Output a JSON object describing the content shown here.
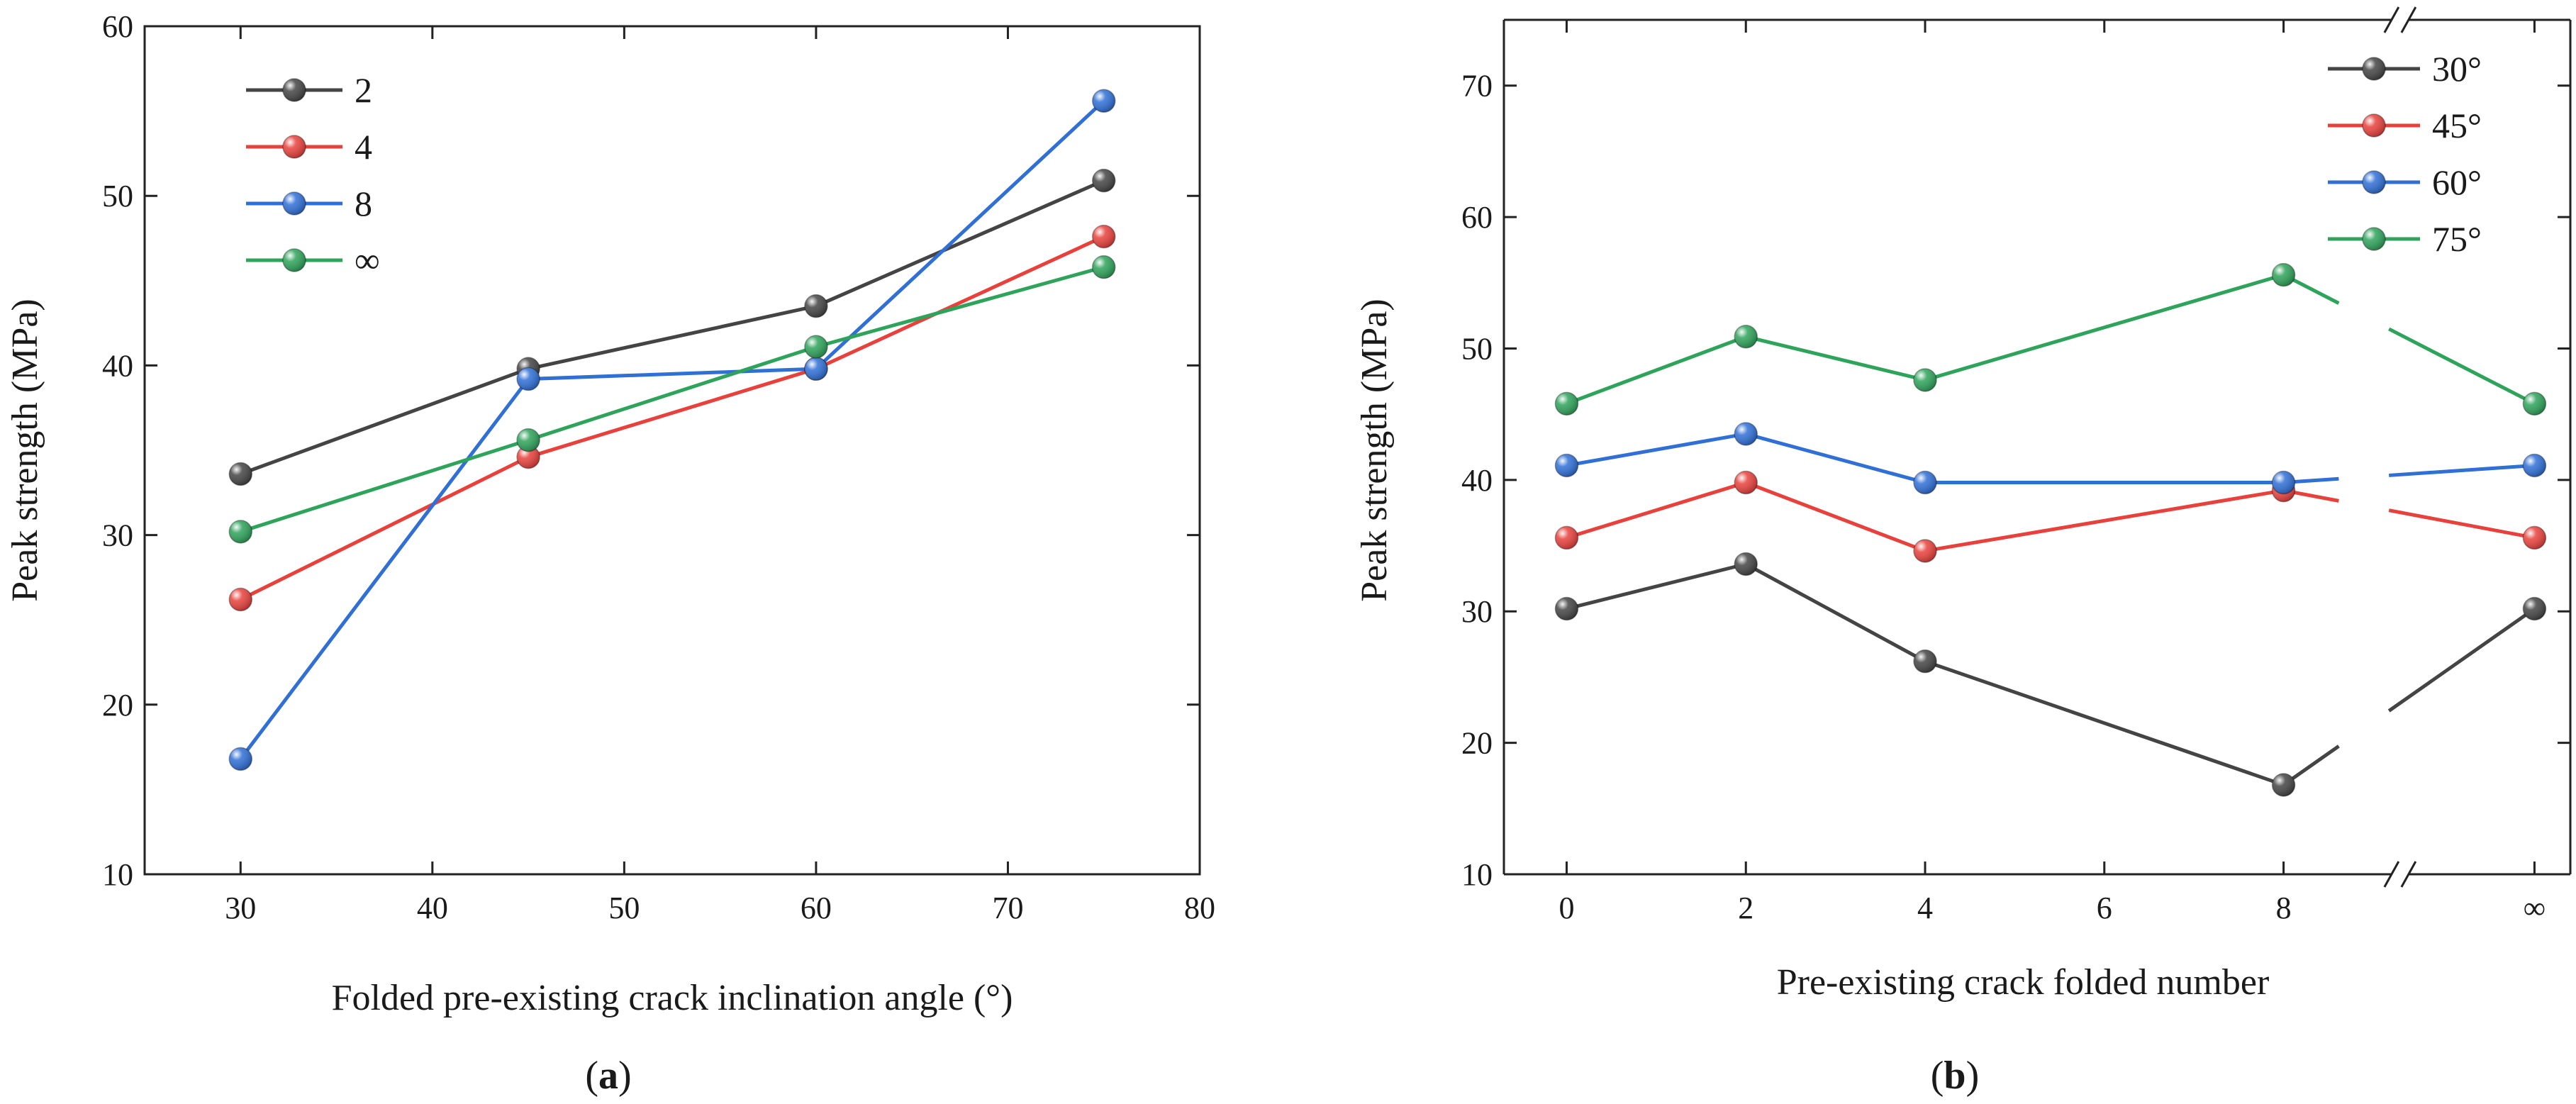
{
  "chart_data": [
    {
      "panel_label": "a",
      "type": "line",
      "title": "",
      "xlabel": "Folded pre-existing crack inclination angle (°)",
      "ylabel": "Peak strength (MPa)",
      "xlim": [
        25,
        80
      ],
      "ylim": [
        10,
        60
      ],
      "xticks": [
        "30",
        "40",
        "50",
        "60",
        "70",
        "80"
      ],
      "yticks": [
        "10",
        "20",
        "30",
        "40",
        "50",
        "60"
      ],
      "legend_position": "top-left",
      "grid": false,
      "x": [
        30,
        45,
        60,
        75
      ],
      "series": [
        {
          "name": "2",
          "color": "#444444",
          "values": [
            33.6,
            39.8,
            43.5,
            50.9
          ]
        },
        {
          "name": "4",
          "color": "#e8413c",
          "values": [
            26.2,
            34.6,
            39.8,
            47.6
          ]
        },
        {
          "name": "8",
          "color": "#2f6fd6",
          "values": [
            16.8,
            39.2,
            39.8,
            55.6
          ]
        },
        {
          "name": "∞",
          "color": "#2ea35a",
          "values": [
            30.2,
            35.6,
            41.1,
            45.8
          ]
        }
      ]
    },
    {
      "panel_label": "b",
      "type": "line",
      "title": "",
      "xlabel": "Pre-existing crack folded number",
      "ylabel": "Peak strength (MPa)",
      "xlim": [
        -0.7,
        11.2
      ],
      "ylim": [
        10,
        75
      ],
      "xticks": [
        "0",
        "2",
        "4",
        "6",
        "8",
        "∞"
      ],
      "yticks": [
        "10",
        "20",
        "30",
        "40",
        "50",
        "60",
        "70"
      ],
      "axis_break": "between 8 and ∞",
      "legend_position": "top-right",
      "grid": false,
      "x": [
        "0",
        "2",
        "4",
        "8",
        "∞"
      ],
      "series": [
        {
          "name": "30°",
          "color": "#444444",
          "values": [
            30.2,
            33.6,
            26.2,
            16.8,
            30.2
          ]
        },
        {
          "name": "45°",
          "color": "#e8413c",
          "values": [
            35.6,
            39.8,
            34.6,
            39.2,
            35.6
          ]
        },
        {
          "name": "60°",
          "color": "#2f6fd6",
          "values": [
            41.1,
            43.5,
            39.8,
            39.8,
            41.1
          ]
        },
        {
          "name": "75°",
          "color": "#2ea35a",
          "values": [
            45.8,
            50.9,
            47.6,
            55.6,
            45.8
          ]
        }
      ]
    }
  ]
}
